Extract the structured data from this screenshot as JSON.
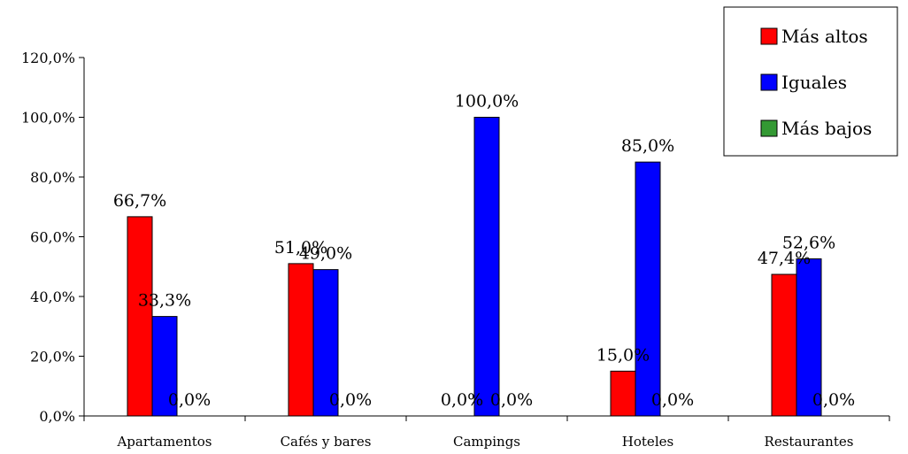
{
  "chart_data": {
    "type": "bar",
    "categories": [
      "Apartamentos",
      "Cafés y bares",
      "Campings",
      "Hoteles",
      "Restaurantes"
    ],
    "series": [
      {
        "name": "Más altos",
        "color": "#ff0000",
        "values": [
          66.7,
          51.0,
          0.0,
          15.0,
          47.4
        ],
        "labels": [
          "66,7%",
          "51,0%",
          "0,0%",
          "15,0%",
          "47,4%"
        ]
      },
      {
        "name": "Iguales",
        "color": "#0000ff",
        "values": [
          33.3,
          49.0,
          100.0,
          85.0,
          52.6
        ],
        "labels": [
          "33,3%",
          "49,0%",
          "100,0%",
          "85,0%",
          "52,6%"
        ]
      },
      {
        "name": "Más bajos",
        "color": "#339933",
        "values": [
          0.0,
          0.0,
          0.0,
          0.0,
          0.0
        ],
        "labels": [
          "0,0%",
          "0,0%",
          "0,0%",
          "0,0%",
          "0,0%"
        ]
      }
    ],
    "ylim": [
      0,
      120
    ],
    "yticks": [
      0,
      20,
      40,
      60,
      80,
      100,
      120
    ],
    "ytick_labels": [
      "0,0%",
      "20,0%",
      "40,0%",
      "60,0%",
      "80,0%",
      "100,0%",
      "120,0%"
    ],
    "grid": false,
    "legend_position": "top-right"
  }
}
